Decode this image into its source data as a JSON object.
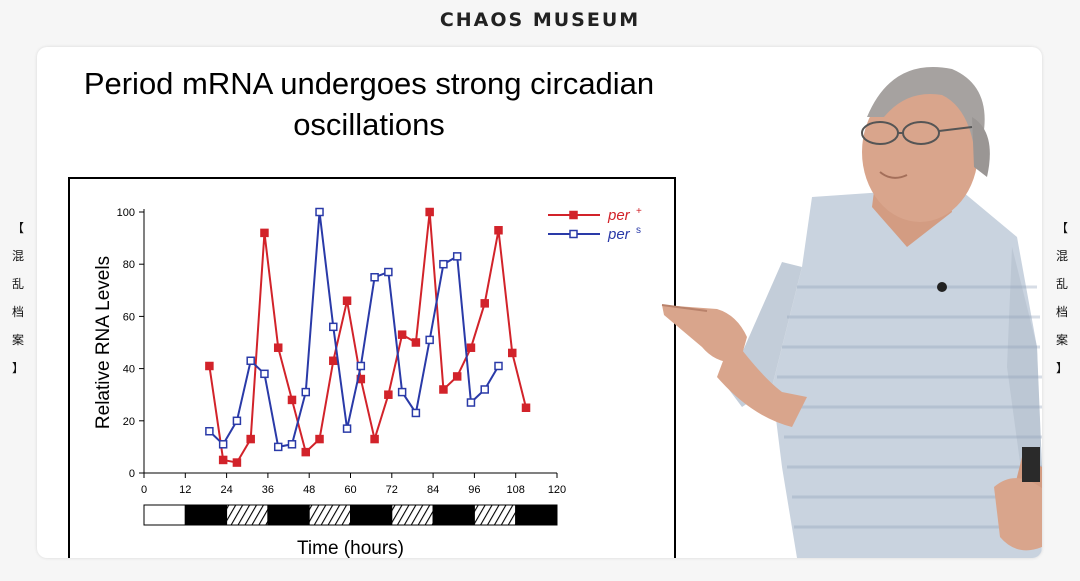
{
  "header": {
    "brand": "CHAOS MUSEUM"
  },
  "side_text": {
    "left": [
      "【",
      "混",
      "乱",
      "档",
      "案",
      "】"
    ],
    "right": [
      "【",
      "混",
      "乱",
      "档",
      "案",
      "】"
    ]
  },
  "slide": {
    "title_line1": "Period mRNA undergoes strong circadian",
    "title_line2": "oscillations"
  },
  "chart_data": {
    "type": "line",
    "xlabel": "Time (hours)",
    "ylabel": "Relative RNA Levels",
    "xlim": [
      0,
      120
    ],
    "ylim": [
      0,
      100
    ],
    "xticks": [
      0,
      12,
      24,
      36,
      48,
      60,
      72,
      84,
      96,
      108,
      120
    ],
    "yticks": [
      0,
      20,
      40,
      60,
      80,
      100
    ],
    "grid": false,
    "legend_position": "top-right",
    "light_dark_bar": [
      "light",
      "dark",
      "subjective-light",
      "dark",
      "subjective-light",
      "dark",
      "subjective-light",
      "dark",
      "subjective-light",
      "dark"
    ],
    "series": [
      {
        "name": "per",
        "superscript": "+",
        "color": "#d2232a",
        "marker": "filled-square",
        "x": [
          19,
          23,
          27,
          31,
          35,
          39,
          43,
          47,
          51,
          55,
          59,
          63,
          67,
          71,
          75,
          79,
          83,
          87,
          91,
          95,
          99,
          103,
          107,
          111
        ],
        "y": [
          41,
          5,
          4,
          13,
          92,
          48,
          28,
          8,
          13,
          43,
          66,
          36,
          13,
          30,
          53,
          50,
          100,
          32,
          37,
          48,
          65,
          93,
          46,
          25
        ]
      },
      {
        "name": "per",
        "superscript": "s",
        "color": "#2a3aa8",
        "marker": "open-square",
        "x": [
          19,
          23,
          27,
          31,
          35,
          39,
          43,
          47,
          51,
          55,
          59,
          63,
          67,
          71,
          75,
          79,
          83,
          87,
          91,
          95,
          99,
          103
        ],
        "y": [
          16,
          11,
          20,
          43,
          38,
          10,
          11,
          31,
          100,
          56,
          17,
          41,
          75,
          77,
          31,
          23,
          51,
          80,
          83,
          27,
          32,
          41
        ]
      }
    ]
  },
  "colors": {
    "axis": "#000000",
    "skin": "#d9a58c",
    "shirt": "#c7d2de"
  }
}
